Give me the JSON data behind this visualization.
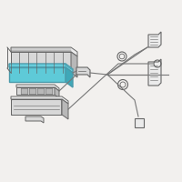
{
  "bg_color": "#f2f0ee",
  "module_fill": "#5ecad8",
  "module_top": "#6dd5e2",
  "module_side": "#3fa8b8",
  "module_edge": "#4a9aaa",
  "gray_light": "#ebebeb",
  "gray_mid": "#d8d8d8",
  "gray_dark": "#b8b8b8",
  "edge_color": "#666666",
  "line_color": "#777777",
  "figsize": [
    2.0,
    2.0
  ],
  "dpi": 100
}
